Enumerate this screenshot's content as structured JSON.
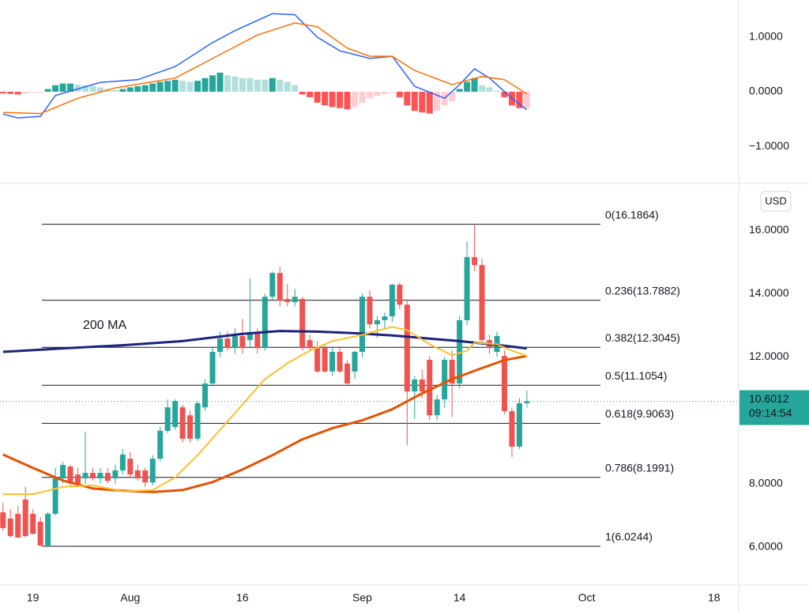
{
  "chart_data": [
    {
      "type": "macd",
      "ylim": [
        -1.68,
        1.68
      ],
      "yticks": [
        {
          "value": 1,
          "label": "1.0000"
        },
        {
          "value": 0,
          "label": "0.0000"
        },
        {
          "value": -1,
          "label": "−1.0000"
        }
      ],
      "x": [
        196,
        197,
        198,
        199,
        200,
        201,
        202,
        203,
        204,
        205,
        206,
        207,
        208,
        209,
        210,
        211,
        212,
        213,
        214,
        215,
        216,
        217,
        218,
        219,
        220,
        221,
        222,
        223,
        224,
        225,
        226,
        227,
        228,
        229,
        230,
        231,
        232,
        233,
        234,
        235,
        236,
        237,
        238,
        239,
        240,
        241,
        242,
        243,
        244,
        245,
        246,
        247,
        248,
        249,
        250,
        251,
        252,
        253,
        254,
        255,
        256,
        257,
        258,
        259,
        260,
        261,
        262,
        263,
        264,
        265,
        266
      ],
      "histogram": [
        -0.03,
        -0.04,
        -0.05,
        -0.03,
        -0.02,
        -0.02,
        0.05,
        0.12,
        0.15,
        0.15,
        0.13,
        0.12,
        0.1,
        0.08,
        0.05,
        0.03,
        0.05,
        0.08,
        0.1,
        0.12,
        0.15,
        0.18,
        0.2,
        0.22,
        0.2,
        0.18,
        0.2,
        0.25,
        0.3,
        0.35,
        0.3,
        0.28,
        0.25,
        0.25,
        0.22,
        0.22,
        0.25,
        0.22,
        0.18,
        0.12,
        -0.05,
        -0.1,
        -0.2,
        -0.25,
        -0.28,
        -0.3,
        -0.32,
        -0.28,
        -0.2,
        -0.12,
        -0.08,
        -0.04,
        -0.02,
        -0.1,
        -0.25,
        -0.35,
        -0.38,
        -0.4,
        -0.35,
        -0.25,
        -0.18,
        0.05,
        0.18,
        0.25,
        0.12,
        0.08,
        0.02,
        -0.1,
        -0.25,
        -0.3,
        -0.3
      ],
      "histogram_colors": [
        "#ff5252",
        "#ff5252",
        "#ff5252",
        "#ffcdd2",
        "#ffcdd2",
        "#ffcdd2",
        "#26a69a",
        "#26a69a",
        "#26a69a",
        "#26a69a",
        "#b2dfdb",
        "#b2dfdb",
        "#b2dfdb",
        "#b2dfdb",
        "#b2dfdb",
        "#b2dfdb",
        "#26a69a",
        "#26a69a",
        "#26a69a",
        "#26a69a",
        "#26a69a",
        "#26a69a",
        "#26a69a",
        "#26a69a",
        "#b2dfdb",
        "#b2dfdb",
        "#26a69a",
        "#26a69a",
        "#26a69a",
        "#26a69a",
        "#b2dfdb",
        "#b2dfdb",
        "#b2dfdb",
        "#b2dfdb",
        "#b2dfdb",
        "#b2dfdb",
        "#26a69a",
        "#b2dfdb",
        "#b2dfdb",
        "#b2dfdb",
        "#ff5252",
        "#ff5252",
        "#ff5252",
        "#ff5252",
        "#ff5252",
        "#ff5252",
        "#ff5252",
        "#ffcdd2",
        "#ffcdd2",
        "#ffcdd2",
        "#ffcdd2",
        "#ffcdd2",
        "#ffcdd2",
        "#ff5252",
        "#ff5252",
        "#ff5252",
        "#ff5252",
        "#ff5252",
        "#ffcdd2",
        "#ffcdd2",
        "#ffcdd2",
        "#26a69a",
        "#26a69a",
        "#26a69a",
        "#b2dfdb",
        "#b2dfdb",
        "#b2dfdb",
        "#ff5252",
        "#ff5252",
        "#ff5252",
        "#ffcdd2"
      ],
      "series": [
        {
          "color": "#2962ff",
          "x": [
            196,
            198,
            201,
            203,
            209,
            214,
            219,
            224,
            227,
            232,
            235,
            238,
            241,
            245,
            248,
            251,
            255,
            257,
            259,
            261,
            264,
            266
          ],
          "values": [
            -0.41,
            -0.48,
            -0.45,
            -0.07,
            0.17,
            0.22,
            0.46,
            0.9,
            1.12,
            1.43,
            1.41,
            1.0,
            0.75,
            0.61,
            0.65,
            0.1,
            -0.12,
            0.13,
            0.42,
            0.25,
            -0.12,
            -0.33
          ]
        },
        {
          "color": "#ff6d00",
          "x": [
            196,
            201,
            206,
            211,
            219,
            225,
            230,
            235,
            238,
            242,
            245,
            248,
            251,
            256,
            260,
            263,
            266
          ],
          "values": [
            -0.38,
            -0.4,
            -0.12,
            0.07,
            0.25,
            0.68,
            1.04,
            1.26,
            1.19,
            0.8,
            0.65,
            0.65,
            0.39,
            0.13,
            0.28,
            0.22,
            -0.04
          ]
        }
      ]
    },
    {
      "type": "candlestick",
      "currency": "USD",
      "xlim": [
        195.6,
        294.3
      ],
      "xticks": [
        {
          "value": 200,
          "label": "19"
        },
        {
          "value": 213,
          "label": "Aug"
        },
        {
          "value": 228,
          "label": "16"
        },
        {
          "value": 244,
          "label": "Sep"
        },
        {
          "value": 257,
          "label": "14"
        },
        {
          "value": 274,
          "label": "Oct"
        },
        {
          "value": 291,
          "label": "18"
        }
      ],
      "ylim": [
        4.8,
        17.4
      ],
      "yticks": [
        {
          "value": 6,
          "label": "6.0000"
        },
        {
          "value": 8,
          "label": "8.0000"
        },
        {
          "value": 12,
          "label": "12.0000"
        },
        {
          "value": 14,
          "label": "14.0000"
        },
        {
          "value": 16,
          "label": "16.0000"
        }
      ],
      "up_color": "#26a69a",
      "down_color": "#ef5350",
      "x": [
        196,
        197,
        198,
        199,
        200,
        201,
        202,
        203,
        204,
        205,
        206,
        207,
        208,
        209,
        210,
        211,
        212,
        213,
        214,
        215,
        216,
        217,
        218,
        219,
        220,
        221,
        222,
        223,
        224,
        225,
        226,
        227,
        228,
        229,
        230,
        231,
        232,
        233,
        234,
        235,
        236,
        237,
        238,
        239,
        240,
        241,
        242,
        243,
        244,
        245,
        246,
        247,
        248,
        249,
        250,
        251,
        252,
        253,
        254,
        255,
        256,
        257,
        258,
        259,
        260,
        261,
        262,
        263,
        264,
        265,
        266
      ],
      "open": [
        7.1,
        6.9,
        7.05,
        7.5,
        7.05,
        6.8,
        6.05,
        7.05,
        8.17,
        8.54,
        8.29,
        8.17,
        8.34,
        8.17,
        8.34,
        8.17,
        8.42,
        8.79,
        8.42,
        8.42,
        8.04,
        8.79,
        9.67,
        9.79,
        10.41,
        10.16,
        9.42,
        10.41,
        11.16,
        12.16,
        12.58,
        12.28,
        12.66,
        12.53,
        12.78,
        12.28,
        13.9,
        14.65,
        13.83,
        13.73,
        13.83,
        12.53,
        12.28,
        12.28,
        11.54,
        12.16,
        11.79,
        11.54,
        12.16,
        13.9,
        13.03,
        13.16,
        13.28,
        14.28,
        13.65,
        10.91,
        11.29,
        11.91,
        10.16,
        10.66,
        11.91,
        11.16,
        13.16,
        15.15,
        14.9,
        12.53,
        12.16,
        12.03,
        10.29,
        9.17,
        10.54
      ],
      "high": [
        7.4,
        7.2,
        7.3,
        7.9,
        7.2,
        6.95,
        7.1,
        8.5,
        8.7,
        8.6,
        8.5,
        9.65,
        8.5,
        8.5,
        8.5,
        8.6,
        9.1,
        9.0,
        8.6,
        8.5,
        8.9,
        9.8,
        10.66,
        10.66,
        10.5,
        10.3,
        10.6,
        11.3,
        12.3,
        12.8,
        12.8,
        12.9,
        13.2,
        14.48,
        12.9,
        14.0,
        14.7,
        14.85,
        14.3,
        14.15,
        13.9,
        12.7,
        12.5,
        12.4,
        12.3,
        12.3,
        11.9,
        12.2,
        14.0,
        14.1,
        13.3,
        13.4,
        14.3,
        14.35,
        13.8,
        11.4,
        11.6,
        12.03,
        10.8,
        12.0,
        12.2,
        13.3,
        15.65,
        16.1864,
        15.1,
        12.7,
        12.8,
        12.2,
        10.4,
        10.7,
        10.94
      ],
      "low": [
        6.5,
        6.3,
        6.3,
        6.3,
        6.4,
        6.0244,
        6.05,
        7.0,
        8.0,
        7.95,
        7.9,
        8.0,
        8.1,
        8.0,
        8.0,
        8.0,
        8.3,
        8.2,
        8.1,
        7.9,
        7.95,
        8.7,
        9.6,
        9.7,
        9.3,
        9.3,
        9.35,
        10.3,
        11.1,
        12.0,
        12.2,
        12.1,
        12.1,
        12.3,
        12.1,
        12.2,
        13.8,
        13.6,
        13.6,
        13.6,
        12.2,
        12.2,
        11.5,
        11.5,
        11.4,
        11.5,
        11.1,
        11.3,
        12.0,
        12.9,
        12.6,
        12.9,
        13.1,
        13.5,
        9.22,
        10.04,
        10.7,
        10.0,
        10.0,
        10.4,
        10.1,
        11.0,
        13.0,
        14.7,
        12.4,
        12.1,
        12.0,
        10.2,
        8.84,
        9.1,
        10.4
      ],
      "close": [
        6.6,
        6.35,
        6.3,
        6.35,
        6.42,
        6.05,
        7.05,
        8.17,
        8.59,
        8.04,
        7.99,
        8.34,
        8.17,
        8.34,
        8.09,
        8.42,
        8.92,
        8.29,
        8.17,
        8.04,
        8.79,
        9.67,
        10.41,
        10.61,
        9.42,
        9.42,
        10.54,
        11.16,
        12.16,
        12.58,
        12.28,
        12.66,
        12.28,
        12.78,
        12.28,
        13.9,
        14.65,
        13.78,
        13.73,
        13.9,
        12.28,
        12.28,
        11.54,
        11.54,
        12.16,
        11.54,
        11.16,
        12.16,
        13.9,
        13.03,
        13.16,
        13.28,
        14.28,
        13.65,
        10.91,
        11.29,
        10.91,
        10.16,
        10.66,
        11.91,
        11.16,
        13.16,
        15.15,
        14.9,
        12.53,
        12.28,
        12.66,
        10.29,
        9.17,
        10.54,
        10.6012
      ],
      "last_price": {
        "value": 10.6012,
        "label": "10.6012"
      },
      "countdown": "09:14:54",
      "fib_levels": [
        {
          "value": 16.1864,
          "label": "0(16.1864)"
        },
        {
          "value": 13.7882,
          "label": "0.236(13.7882)"
        },
        {
          "value": 12.3045,
          "label": "0.382(12.3045)"
        },
        {
          "value": 11.1054,
          "label": "0.5(11.1054)"
        },
        {
          "value": 9.9063,
          "label": "0.618(9.9063)"
        },
        {
          "value": 8.1991,
          "label": "0.786(8.1991)"
        },
        {
          "value": 6.0244,
          "label": "1(6.0244)"
        }
      ],
      "moving_averages": [
        {
          "name": "200 MA",
          "color": "#1a237e",
          "x": [
            196,
            204,
            212,
            220,
            228,
            233,
            238,
            243,
            248,
            253,
            257,
            262,
            266
          ],
          "values": [
            12.16,
            12.27,
            12.37,
            12.5,
            12.73,
            12.82,
            12.8,
            12.75,
            12.68,
            12.58,
            12.5,
            12.38,
            12.27
          ]
        },
        {
          "color": "#e65100",
          "x": [
            196,
            200,
            204,
            208,
            212,
            216,
            220,
            224,
            228,
            232,
            236,
            240,
            244,
            248,
            252,
            256,
            260,
            263,
            266
          ],
          "values": [
            8.92,
            8.5,
            8.1,
            7.85,
            7.78,
            7.74,
            7.8,
            8.05,
            8.45,
            8.9,
            9.4,
            9.75,
            10.0,
            10.35,
            10.85,
            11.3,
            11.65,
            11.9,
            12.03
          ]
        },
        {
          "color": "#fbc02d",
          "x": [
            196,
            200,
            204,
            208,
            212,
            216,
            219,
            222,
            225,
            228,
            231,
            234,
            237,
            240,
            244,
            248,
            250,
            253,
            256,
            258,
            259,
            262,
            264,
            266
          ],
          "values": [
            7.67,
            7.67,
            7.9,
            7.95,
            7.76,
            7.8,
            8.2,
            8.9,
            9.7,
            10.5,
            11.3,
            11.8,
            12.2,
            12.5,
            12.7,
            12.95,
            12.85,
            12.4,
            12.05,
            12.2,
            12.45,
            12.4,
            12.2,
            12.03
          ]
        }
      ]
    }
  ]
}
